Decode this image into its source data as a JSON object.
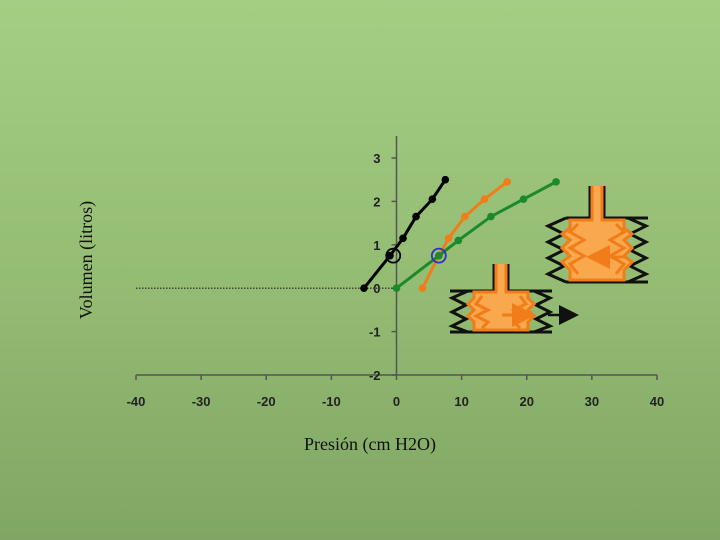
{
  "chart_data": {
    "type": "line",
    "xlabel": "Presión  (cm H2O)",
    "ylabel": "Volumen  (litros)",
    "xlim": [
      -40,
      40
    ],
    "ylim": [
      -2,
      3
    ],
    "x_ticks": [
      -40,
      -30,
      -20,
      -10,
      0,
      10,
      20,
      30,
      40
    ],
    "y_ticks": [
      -2,
      -1,
      0,
      1,
      2,
      3
    ],
    "grid": false,
    "baseline": {
      "y": 0,
      "x_from": -40,
      "x_to": 0
    },
    "series": [
      {
        "color": "#000000",
        "x": [
          -5,
          -1,
          1,
          3,
          5.5,
          7.5
        ],
        "y": [
          0,
          0.75,
          1.15,
          1.65,
          2.05,
          2.5
        ]
      },
      {
        "color": "#f07d1a",
        "x": [
          4,
          6.5,
          8,
          10.5,
          13.5,
          17
        ],
        "y": [
          0,
          0.75,
          1.15,
          1.65,
          2.05,
          2.45
        ]
      },
      {
        "color": "#1c8a2a",
        "x": [
          0,
          6.5,
          9.5,
          14.5,
          19.5,
          24.5
        ],
        "y": [
          0,
          0.75,
          1.1,
          1.65,
          2.05,
          2.45
        ]
      }
    ],
    "markers": [
      {
        "x": -0.5,
        "y": 0.75,
        "color": "#000000"
      },
      {
        "x": 6.5,
        "y": 0.75,
        "color": "#2a32c8"
      }
    ]
  },
  "colors": {
    "axis": "#555555",
    "orange": "#f07d1a",
    "spring": "#111111"
  },
  "illustrations": [
    {
      "name": "lung-diagram-upper",
      "arrow": "right-to-left"
    },
    {
      "name": "lung-diagram-lower",
      "arrow": "left-to-right"
    }
  ]
}
